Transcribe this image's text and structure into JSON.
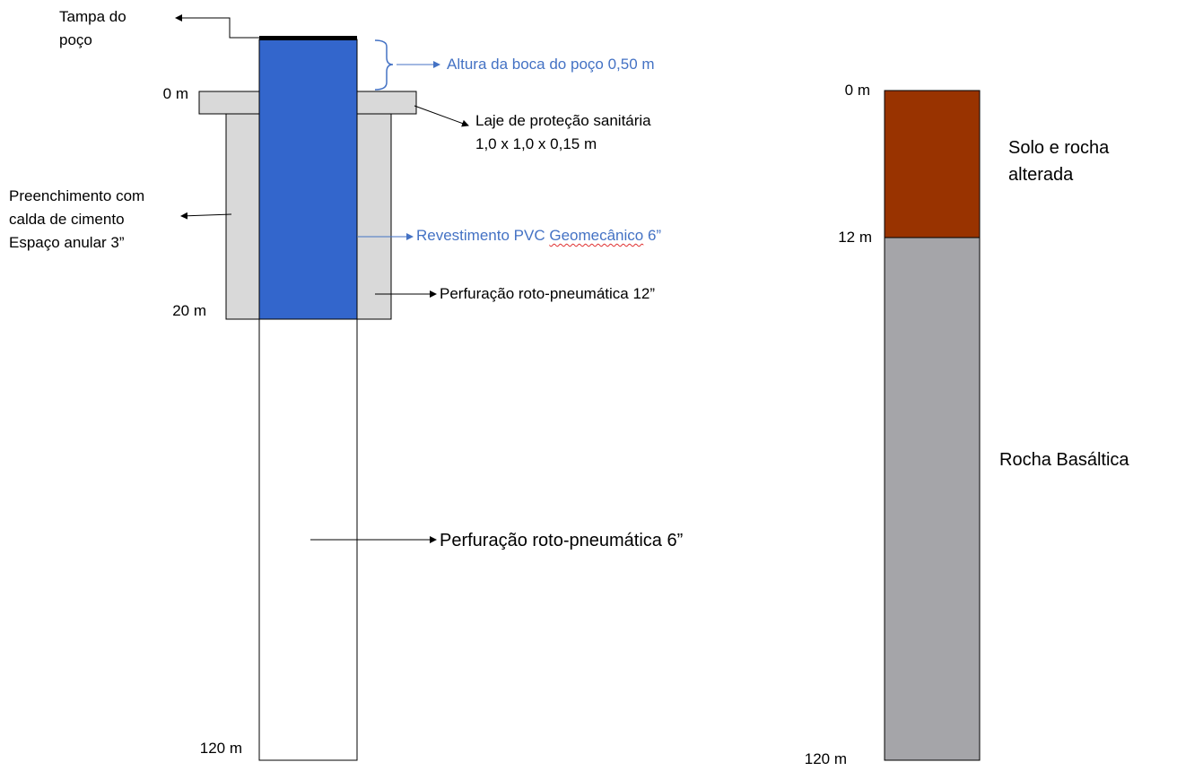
{
  "colors": {
    "casing_blue": "#3366cc",
    "label_blue": "#4472c4",
    "cement_grey": "#d9d9d9",
    "soil_brown": "#993300",
    "basalt_grey": "#a5a5a9",
    "outline": "#000000"
  },
  "well_profile": {
    "depth_labels": {
      "top": "0 m",
      "casing_bottom": "20 m",
      "bottom": "120 m"
    },
    "cap_label": "Tampa do\npoço",
    "wellhead_height_label": "Altura da boca do poço 0,50 m",
    "slab_label": "Laje de proteção sanitária\n1,0 x 1,0 x 0,15 m",
    "grout_label": "Preenchimento com\ncalda de cimento\nEspaço anular 3”",
    "casing_label_prefix": "Revestimento PVC ",
    "casing_label_word": "Geomecânico",
    "casing_label_suffix": " 6”",
    "drilling_12_label": "Perfuração roto-pneumática 12”",
    "drilling_6_label": "Perfuração roto-pneumática 6”"
  },
  "geology_profile": {
    "depth_labels": {
      "top": "0 m",
      "contact": "12 m",
      "bottom": "120 m"
    },
    "layers": [
      {
        "name": "Solo e rocha\nalterada",
        "top_m": 0,
        "bottom_m": 12,
        "color": "#993300"
      },
      {
        "name": "Rocha Basáltica",
        "top_m": 12,
        "bottom_m": 120,
        "color": "#a5a5a9"
      }
    ]
  }
}
